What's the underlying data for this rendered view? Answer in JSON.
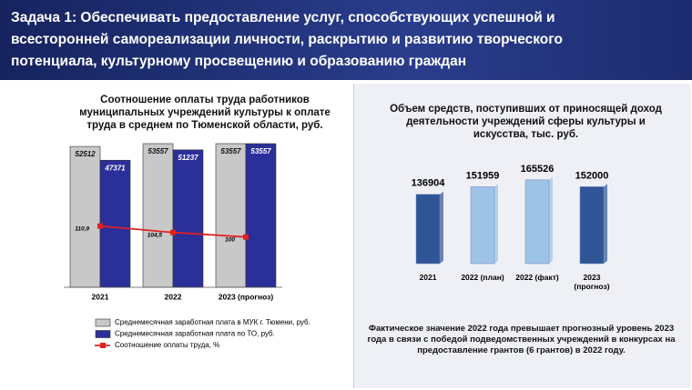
{
  "header": {
    "title": "Задача 1: Обеспечивать предоставление услуг, способствующих успешной и всесторонней самореализации личности, раскрытию и развитию творческого потенциала, культурному просвещению и образованию граждан"
  },
  "chart_data": [
    {
      "type": "bar",
      "title": "Соотношение оплаты труда работников муниципальных учреждений культуры к оплате труда в среднем по Тюменской области, руб.",
      "categories": [
        "2021",
        "2022",
        "2023 (прогноз)"
      ],
      "series": [
        {
          "name": "Среднемесячная заработная плата в МУК г. Тюмени, руб.",
          "color": "#c8c8c8",
          "values": [
            52512,
            53557,
            53557
          ]
        },
        {
          "name": "Среднемесячная заработная плата по  ТО, руб.",
          "color": "#2b2f9a",
          "values": [
            47371,
            51237,
            53557
          ]
        },
        {
          "name": "Соотношение оплаты труда, %",
          "color": "#e02020",
          "type": "line",
          "axis": "y2",
          "values": [
            110.9,
            104.5,
            100
          ],
          "value_labels": [
            "110,9",
            "104,5",
            "100"
          ]
        }
      ],
      "ylim": [
        0,
        60000
      ],
      "y2lim": [
        50,
        210
      ]
    },
    {
      "type": "bar",
      "title": "Объем средств, поступивших от приносящей доход деятельности учреждений сферы культуры и искусства, тыс. руб.",
      "categories": [
        "2021",
        "2022 (план)",
        "2022 (факт)",
        "2023 (прогноз)"
      ],
      "values": [
        136904,
        151959,
        165526,
        152000
      ],
      "colors": [
        "#2f5597",
        "#9dc3e6",
        "#9dc3e6",
        "#2f5597"
      ],
      "ylim": [
        0,
        300000
      ]
    }
  ],
  "note": "Фактическое значение 2022 года превышает прогнозный уровень 2023 года в связи с победой подведомственных учреждений в конкурсах на предоставление грантов (6 грантов) в 2022 году."
}
